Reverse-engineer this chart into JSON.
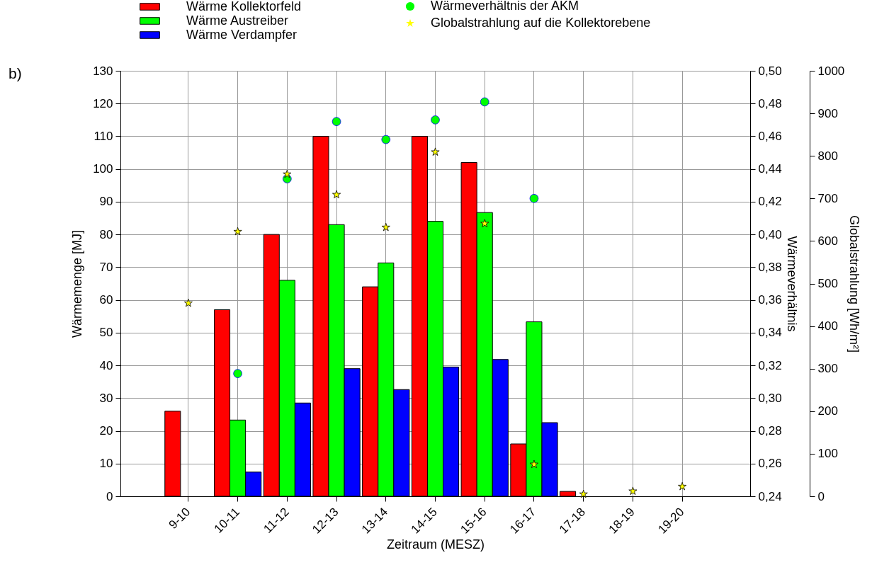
{
  "chart_data": {
    "type": "bar",
    "xlabel": "Zeitraum (MESZ)",
    "ylabel": "Wärmemenge [MJ]",
    "y2label": "Wärmeverhältnis",
    "y3label": "Globalstrahlung [Wh/m²]",
    "categories": [
      "9-10",
      "10-11",
      "11-12",
      "12-13",
      "13-14",
      "14-15",
      "15-16",
      "16-17",
      "17-18",
      "18-19",
      "19-20"
    ],
    "series": [
      {
        "name": "Wärme Kollektorfeld",
        "color": "#ff0000",
        "values": [
          26,
          57,
          80,
          110,
          64,
          110,
          102,
          16,
          1.5,
          null,
          null
        ]
      },
      {
        "name": "Wärme Austreiber",
        "color": "#00ff00",
        "values": [
          null,
          23.3,
          66,
          83,
          71.3,
          84,
          86.7,
          53.3,
          null,
          null,
          null
        ]
      },
      {
        "name": "Wärme Verdampfer",
        "color": "#0000ff",
        "values": [
          null,
          7.4,
          28.5,
          39,
          32.6,
          39.5,
          41.8,
          22.5,
          null,
          null,
          null
        ]
      },
      {
        "name": "Wärmeverhältnis der AKM",
        "type": "scatter",
        "axis": "y2",
        "marker": "circle",
        "color": "#00ff00",
        "values": [
          null,
          0.315,
          0.434,
          0.469,
          0.458,
          0.47,
          0.481,
          0.422,
          null,
          null,
          null
        ]
      },
      {
        "name": "Globalstrahlung auf die Kollektorebene",
        "type": "scatter",
        "axis": "y3",
        "marker": "star",
        "color": "#ffff00",
        "values": [
          454,
          622,
          757,
          709,
          632,
          809,
          641,
          75,
          5,
          12,
          23
        ]
      }
    ],
    "ylim": [
      0,
      130
    ],
    "yticks": [
      0,
      10,
      20,
      30,
      40,
      50,
      60,
      70,
      80,
      90,
      100,
      110,
      120,
      130
    ],
    "y2lim": [
      0.24,
      0.5
    ],
    "y2ticks": [
      {
        "value": 0.24,
        "label": "0,24"
      },
      {
        "value": 0.26,
        "label": "0,26"
      },
      {
        "value": 0.28,
        "label": "0,28"
      },
      {
        "value": 0.3,
        "label": "0,30"
      },
      {
        "value": 0.32,
        "label": "0,32"
      },
      {
        "value": 0.34,
        "label": "0,34"
      },
      {
        "value": 0.36,
        "label": "0,36"
      },
      {
        "value": 0.38,
        "label": "0,38"
      },
      {
        "value": 0.4,
        "label": "0,40"
      },
      {
        "value": 0.42,
        "label": "0,42"
      },
      {
        "value": 0.44,
        "label": "0,44"
      },
      {
        "value": 0.46,
        "label": "0,46"
      },
      {
        "value": 0.48,
        "label": "0,48"
      },
      {
        "value": 0.5,
        "label": "0,50"
      }
    ],
    "y3lim": [
      0,
      1000
    ],
    "y3ticks": [
      0,
      100,
      200,
      300,
      400,
      500,
      600,
      700,
      800,
      900,
      1000
    ],
    "grid": true,
    "legend": "top",
    "annotations": [
      "b)"
    ]
  }
}
